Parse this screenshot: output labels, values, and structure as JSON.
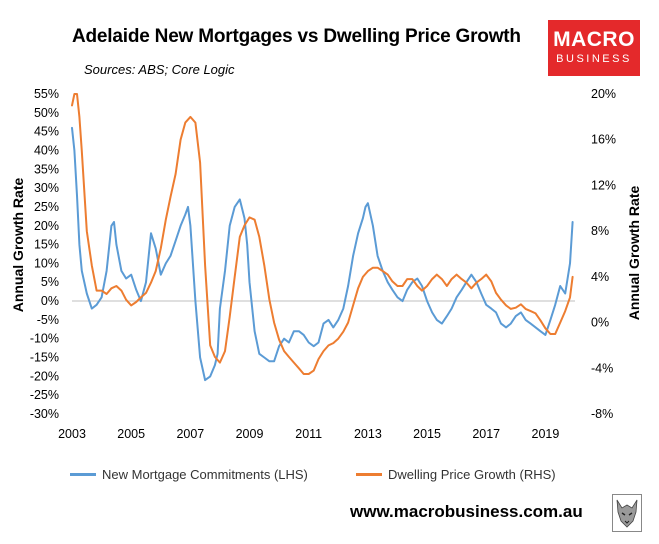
{
  "header": {
    "title": "Adelaide New Mortgages vs Dwelling Price Growth",
    "subtitle": "Sources: ABS; Core Logic"
  },
  "logo": {
    "line1": "MACRO",
    "line2": "BUSINESS"
  },
  "footer": {
    "website": "www.macrobusiness.com.au"
  },
  "wolf_icon": "wolf-head-icon",
  "colors": {
    "lhs_series": "#5b9bd5",
    "rhs_series": "#ed7d31",
    "zero_line": "#bfbfbf",
    "logo_bg": "#e4292b"
  },
  "chart_data": {
    "type": "line",
    "title": "Adelaide New Mortgages vs Dwelling Price Growth",
    "ylabel": "Annual Growth Rate",
    "y2label": "Annual Growth Rate",
    "ylim": [
      -30,
      55
    ],
    "y2lim": [
      -8,
      20
    ],
    "xlim": [
      2003,
      2020.0
    ],
    "x_ticks": [
      "2003",
      "2005",
      "2007",
      "2009",
      "2011",
      "2013",
      "2015",
      "2017",
      "2019"
    ],
    "x_tick_values": [
      2003,
      2005,
      2007,
      2009,
      2011,
      2013,
      2015,
      2017,
      2019
    ],
    "y_ticks": [
      "55%",
      "50%",
      "45%",
      "40%",
      "35%",
      "30%",
      "25%",
      "20%",
      "15%",
      "10%",
      "5%",
      "0%",
      "-5%",
      "-10%",
      "-15%",
      "-20%",
      "-25%",
      "-30%"
    ],
    "y_tick_values": [
      55,
      50,
      45,
      40,
      35,
      30,
      25,
      20,
      15,
      10,
      5,
      0,
      -5,
      -10,
      -15,
      -20,
      -25,
      -30
    ],
    "y2_ticks": [
      "20%",
      "16%",
      "12%",
      "8%",
      "4%",
      "0%",
      "-4%",
      "-8%"
    ],
    "y2_tick_values": [
      20,
      16,
      12,
      8,
      4,
      0,
      -4,
      -8
    ],
    "legend_position": "bottom",
    "series": [
      {
        "name": "New Mortgage Commitments (LHS)",
        "axis": "left",
        "x": [
          2003.0,
          2003.08,
          2003.17,
          2003.25,
          2003.33,
          2003.5,
          2003.67,
          2003.83,
          2004.0,
          2004.17,
          2004.33,
          2004.42,
          2004.5,
          2004.67,
          2004.83,
          2005.0,
          2005.17,
          2005.33,
          2005.5,
          2005.67,
          2005.83,
          2006.0,
          2006.17,
          2006.33,
          2006.5,
          2006.67,
          2006.83,
          2006.92,
          2007.0,
          2007.17,
          2007.33,
          2007.5,
          2007.67,
          2007.83,
          2007.92,
          2008.0,
          2008.17,
          2008.33,
          2008.5,
          2008.67,
          2008.83,
          2008.92,
          2009.0,
          2009.17,
          2009.33,
          2009.5,
          2009.67,
          2009.83,
          2010.0,
          2010.17,
          2010.33,
          2010.5,
          2010.67,
          2010.83,
          2011.0,
          2011.17,
          2011.33,
          2011.5,
          2011.67,
          2011.83,
          2012.0,
          2012.17,
          2012.33,
          2012.5,
          2012.67,
          2012.83,
          2012.92,
          2013.0,
          2013.17,
          2013.33,
          2013.5,
          2013.67,
          2013.83,
          2014.0,
          2014.17,
          2014.33,
          2014.5,
          2014.67,
          2014.83,
          2015.0,
          2015.17,
          2015.33,
          2015.5,
          2015.67,
          2015.83,
          2016.0,
          2016.17,
          2016.33,
          2016.5,
          2016.67,
          2016.83,
          2017.0,
          2017.17,
          2017.33,
          2017.5,
          2017.67,
          2017.83,
          2018.0,
          2018.17,
          2018.33,
          2018.5,
          2018.67,
          2018.83,
          2019.0,
          2019.17,
          2019.33,
          2019.5,
          2019.67,
          2019.83,
          2019.92
        ],
        "values": [
          46,
          40,
          28,
          15,
          8,
          2,
          -2,
          -1,
          1,
          8,
          20,
          21,
          15,
          8,
          6,
          7,
          3,
          0,
          5,
          18,
          14,
          7,
          10,
          12,
          16,
          20,
          23,
          25,
          20,
          0,
          -15,
          -21,
          -20,
          -17,
          -14,
          -2,
          8,
          20,
          25,
          27,
          22,
          15,
          5,
          -8,
          -14,
          -15,
          -16,
          -16,
          -12,
          -10,
          -11,
          -8,
          -8,
          -9,
          -11,
          -12,
          -11,
          -6,
          -5,
          -7,
          -5,
          -2,
          4,
          12,
          18,
          22,
          25,
          26,
          20,
          12,
          8,
          5,
          3,
          1,
          0,
          3,
          5,
          6,
          4,
          0,
          -3,
          -5,
          -6,
          -4,
          -2,
          1,
          3,
          5,
          7,
          5,
          2,
          -1,
          -2,
          -3,
          -6,
          -7,
          -6,
          -4,
          -3,
          -5,
          -6,
          -7,
          -8,
          -9,
          -5,
          -1,
          4,
          2,
          10,
          21
        ]
      },
      {
        "name": "Dwelling Price Growth (RHS)",
        "axis": "right",
        "x": [
          2003.0,
          2003.08,
          2003.17,
          2003.25,
          2003.33,
          2003.5,
          2003.67,
          2003.83,
          2004.0,
          2004.17,
          2004.33,
          2004.5,
          2004.67,
          2004.83,
          2005.0,
          2005.17,
          2005.33,
          2005.5,
          2005.67,
          2005.83,
          2006.0,
          2006.17,
          2006.33,
          2006.5,
          2006.67,
          2006.83,
          2007.0,
          2007.17,
          2007.33,
          2007.5,
          2007.67,
          2007.83,
          2008.0,
          2008.17,
          2008.33,
          2008.5,
          2008.67,
          2008.83,
          2009.0,
          2009.17,
          2009.33,
          2009.5,
          2009.67,
          2009.83,
          2010.0,
          2010.17,
          2010.33,
          2010.5,
          2010.67,
          2010.83,
          2011.0,
          2011.17,
          2011.33,
          2011.5,
          2011.67,
          2011.83,
          2012.0,
          2012.17,
          2012.33,
          2012.5,
          2012.67,
          2012.83,
          2013.0,
          2013.17,
          2013.33,
          2013.5,
          2013.67,
          2013.83,
          2014.0,
          2014.17,
          2014.33,
          2014.5,
          2014.67,
          2014.83,
          2015.0,
          2015.17,
          2015.33,
          2015.5,
          2015.67,
          2015.83,
          2016.0,
          2016.17,
          2016.33,
          2016.5,
          2016.67,
          2016.83,
          2017.0,
          2017.17,
          2017.33,
          2017.5,
          2017.67,
          2017.83,
          2018.0,
          2018.17,
          2018.33,
          2018.5,
          2018.67,
          2018.83,
          2019.0,
          2019.17,
          2019.33,
          2019.5,
          2019.67,
          2019.83,
          2019.92
        ],
        "values": [
          19,
          21,
          20.5,
          18,
          15,
          8,
          5,
          2.8,
          2.8,
          2.5,
          3.0,
          3.2,
          2.8,
          2.0,
          1.5,
          1.8,
          2.2,
          2.6,
          3.5,
          4.5,
          6.5,
          9,
          11,
          13,
          16,
          17.5,
          18,
          17.5,
          14,
          5,
          -2,
          -3,
          -3.5,
          -2.5,
          0.5,
          4,
          7.5,
          8.5,
          9.2,
          9.0,
          7.5,
          5,
          2,
          0,
          -1.5,
          -2.5,
          -3,
          -3.5,
          -4,
          -4.5,
          -4.5,
          -4.2,
          -3.2,
          -2.5,
          -2,
          -1.8,
          -1.4,
          -0.8,
          0,
          1.5,
          3,
          4,
          4.5,
          4.8,
          4.8,
          4.5,
          4.2,
          3.6,
          3.2,
          3.2,
          3.8,
          3.8,
          3.2,
          2.8,
          3.2,
          3.8,
          4.2,
          3.8,
          3.2,
          3.8,
          4.2,
          3.8,
          3.5,
          3.0,
          3.5,
          3.8,
          4.2,
          3.6,
          2.6,
          2.0,
          1.5,
          1.2,
          1.3,
          1.6,
          1.2,
          1.0,
          0.8,
          0.2,
          -0.5,
          -1.0,
          -1.0,
          0.0,
          1.0,
          2.2,
          4.0
        ]
      }
    ]
  }
}
